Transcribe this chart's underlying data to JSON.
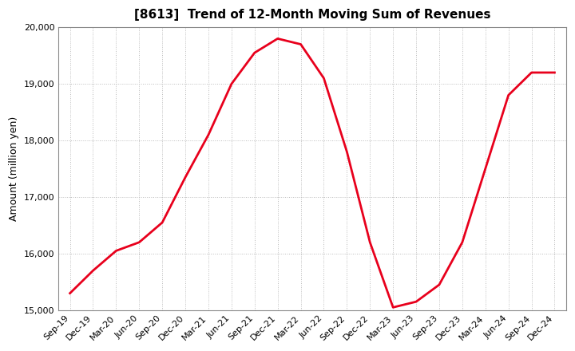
{
  "title": "[8613]  Trend of 12-Month Moving Sum of Revenues",
  "ylabel": "Amount (million yen)",
  "line_color": "#e8001c",
  "background_color": "#ffffff",
  "grid_color": "#bbbbbb",
  "ylim": [
    15000,
    20000
  ],
  "yticks": [
    15000,
    16000,
    17000,
    18000,
    19000,
    20000
  ],
  "x_labels": [
    "Sep-19",
    "Dec-19",
    "Mar-20",
    "Jun-20",
    "Sep-20",
    "Dec-20",
    "Mar-21",
    "Jun-21",
    "Sep-21",
    "Dec-21",
    "Mar-22",
    "Jun-22",
    "Sep-22",
    "Dec-22",
    "Mar-23",
    "Jun-23",
    "Sep-23",
    "Dec-23",
    "Mar-24",
    "Jun-24",
    "Sep-24",
    "Dec-24"
  ],
  "values": [
    15300,
    15700,
    16050,
    16200,
    16550,
    17350,
    18100,
    19000,
    19550,
    19800,
    19700,
    19100,
    17800,
    16200,
    15050,
    15150,
    15450,
    16200,
    17500,
    18800,
    19200,
    19200
  ],
  "title_fontsize": 11,
  "tick_fontsize": 8,
  "ylabel_fontsize": 9,
  "linewidth": 2.0
}
